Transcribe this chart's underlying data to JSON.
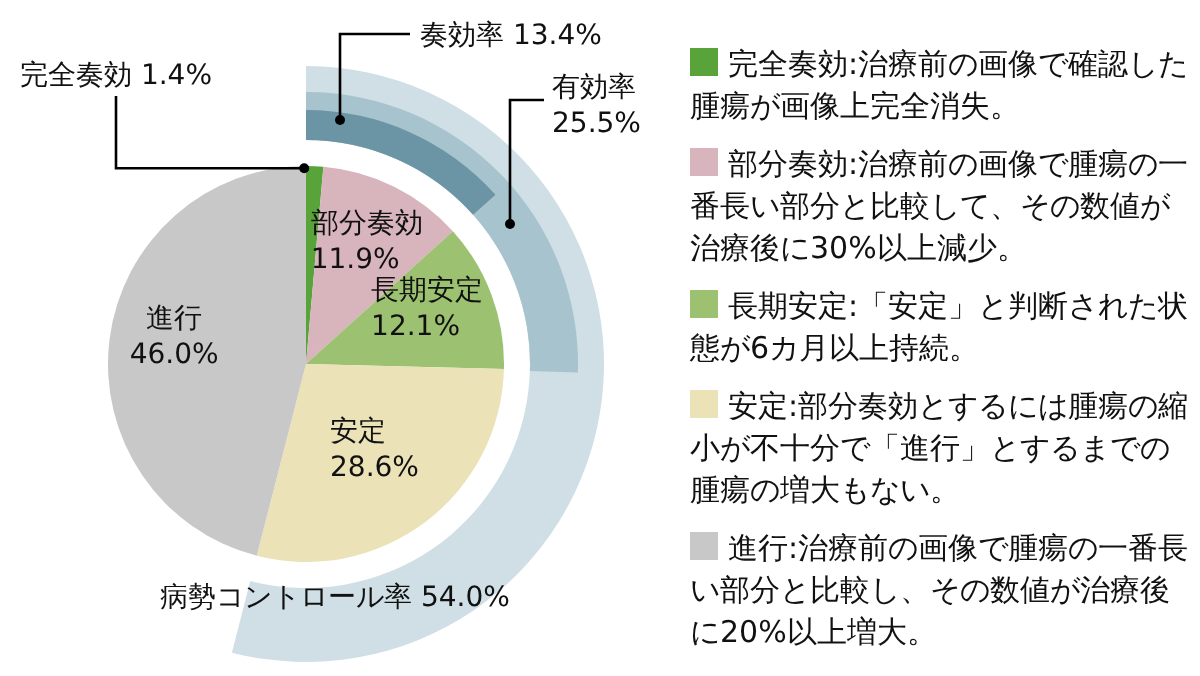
{
  "chart_data": [
    {
      "type": "pie",
      "categories": [
        "完全奏効",
        "部分奏効",
        "長期安定",
        "安定",
        "進行"
      ],
      "values": [
        1.4,
        11.9,
        12.1,
        28.6,
        46.0
      ],
      "value_labels": [
        "1.4%",
        "11.9%",
        "12.1%",
        "28.6%",
        "46.0%"
      ],
      "colors": [
        "#58a33a",
        "#d8b4bd",
        "#9cc271",
        "#ebe2b8",
        "#c8c8c8"
      ],
      "annotations": [
        "完全奏効:治療前の画像で確認した腫瘍が画像上完全消失。",
        "部分奏効:治療前の画像で腫瘍の一番長い部分と比較して、その数値が治療後に30%以上減少。",
        "長期安定:「安定」と判断された状態が6カ月以上持続。",
        "安定:部分奏効とするには腫瘍の縮小が不十分で「進行」とするまでの腫瘍の増大もない。",
        "進行:治療前の画像で腫瘍の一番長い部分と比較し、その数値が治療後に20%以上増大。"
      ]
    },
    {
      "type": "other",
      "categories": [
        "奏効率",
        "有効率",
        "病勢コントロール率"
      ],
      "values": [
        13.4,
        25.5,
        54.0
      ],
      "value_labels": [
        "13.4%",
        "25.5%",
        "54.0%"
      ],
      "colors": [
        "#6b95a5",
        "#a7c3cd",
        "#cfdfe5"
      ]
    }
  ]
}
